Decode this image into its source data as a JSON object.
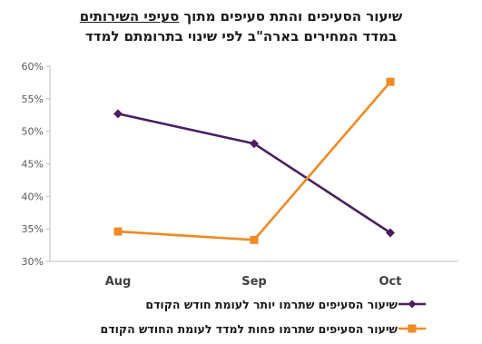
{
  "title": {
    "line1_part1": "שיעור הסעיפים והתת סעיפים מתוך",
    "line1_part2": "סעיפי השירותים",
    "line2": "במדד המחירים בארה\"ב לפי שינוי בתרומתם למדד"
  },
  "chart_data": {
    "type": "line",
    "categories": [
      "Aug",
      "Sep",
      "Oct"
    ],
    "y_ticks": [
      "30%",
      "35%",
      "40%",
      "45%",
      "50%",
      "55%",
      "60%"
    ],
    "ylim": [
      30,
      60
    ],
    "grid": false,
    "legend_position": "bottom",
    "series": [
      {
        "name": "שיעור הסעיפים שתרמו יותר  לעומת חודש הקודם",
        "values": [
          52.7,
          48.1,
          34.4
        ],
        "color": "#4b1e5f",
        "marker": "diamond"
      },
      {
        "name": "שיעור הסעיפים שתרמו פחות למדד לעומת החודש הקודם",
        "values": [
          34.6,
          33.3,
          57.6
        ],
        "color": "#f08a24",
        "marker": "square"
      }
    ]
  }
}
